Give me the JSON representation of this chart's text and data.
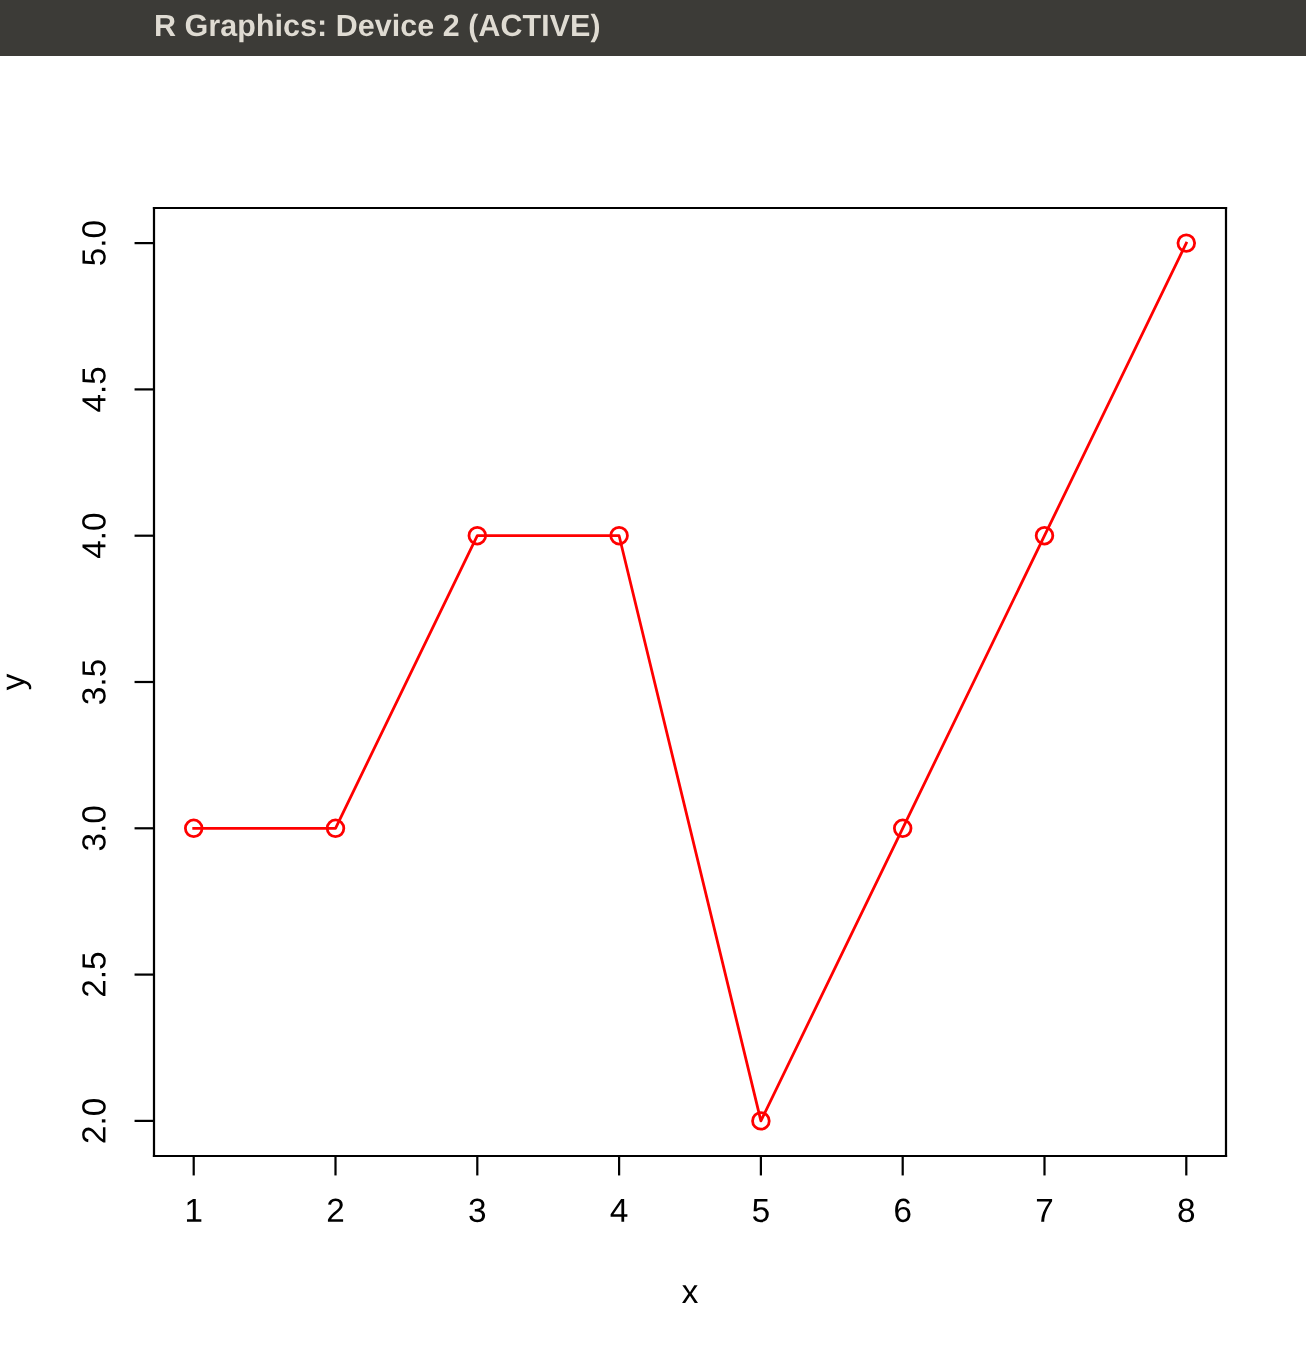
{
  "chart_data": {
    "type": "line",
    "xlabel": "x",
    "ylabel": "y",
    "annotations": [
      "R Graphics: Device 2 (ACTIVE)"
    ],
    "x": [
      1,
      2,
      3,
      4,
      5,
      6,
      7,
      8
    ],
    "series": [
      {
        "color": "#ff0000",
        "values": [
          3,
          3,
          4,
          4,
          2,
          3,
          4,
          5
        ]
      }
    ],
    "xlim": [
      0.72,
      8.28
    ],
    "ylim": [
      1.88,
      5.12
    ],
    "xticks": [
      1,
      2,
      3,
      4,
      5,
      6,
      7,
      8
    ],
    "yticks": [
      {
        "value": 2,
        "label": "2.0"
      },
      {
        "value": 2.5,
        "label": "2.5"
      },
      {
        "value": 3,
        "label": "3.0"
      },
      {
        "value": 3.5,
        "label": "3.5"
      },
      {
        "value": 4,
        "label": "4.0"
      },
      {
        "value": 4.5,
        "label": "4.5"
      },
      {
        "value": 5,
        "label": "5.0"
      }
    ],
    "marker": "circle",
    "line_style": "solid",
    "grid": false,
    "legend": false
  }
}
